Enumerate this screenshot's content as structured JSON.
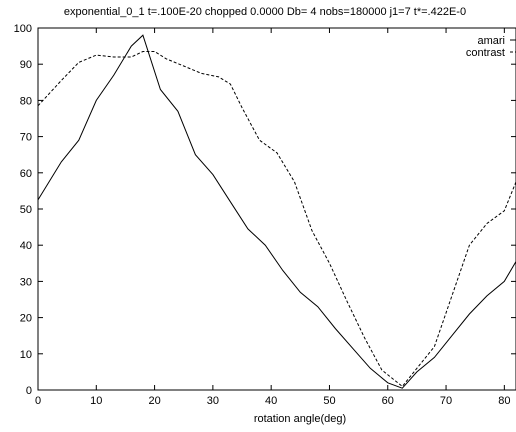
{
  "chart_data": {
    "type": "line",
    "title": "exponential_0_1  t=.100E-20 chopped  0.0000   Db= 4 nobs=180000  j1=7  t*=.422E-0",
    "xlabel": "rotation angle(deg)",
    "ylabel": "",
    "xlim": [
      0,
      82
    ],
    "ylim": [
      0,
      100
    ],
    "xticks": [
      0,
      10,
      20,
      30,
      40,
      50,
      60,
      70,
      80
    ],
    "yticks": [
      0,
      10,
      20,
      30,
      40,
      50,
      60,
      70,
      80,
      90,
      100
    ],
    "grid": false,
    "legend_position": "top-right",
    "series": [
      {
        "name": "amari",
        "style": "solid",
        "color": "#000000",
        "x": [
          0,
          4,
          7,
          10,
          13,
          16,
          18,
          21,
          24,
          27,
          30,
          33,
          36,
          39,
          42,
          45,
          48,
          51,
          54,
          57,
          60,
          62.5,
          65,
          68,
          71,
          74,
          77,
          80,
          82
        ],
        "y": [
          52.5,
          63,
          69,
          80,
          87,
          95,
          98,
          83,
          77,
          65,
          59.5,
          52,
          44.5,
          40,
          33,
          27,
          23,
          17,
          11.5,
          6,
          2,
          0.5,
          5,
          9,
          15,
          21,
          26,
          30,
          35.5
        ]
      },
      {
        "name": "contrast",
        "style": "dashed",
        "color": "#000000",
        "x": [
          0,
          4,
          7,
          10,
          13,
          16,
          18,
          20,
          22,
          25,
          28,
          31,
          33,
          35,
          38,
          41,
          44,
          47,
          50,
          53,
          56,
          59,
          62.5,
          65,
          68,
          71,
          74,
          77,
          80,
          82
        ],
        "y": [
          78.5,
          85.5,
          90.5,
          92.5,
          92,
          92,
          93.5,
          93.5,
          91.5,
          89.5,
          87.5,
          86.5,
          84.5,
          78,
          69,
          65.5,
          57.5,
          44,
          35,
          24.5,
          14.5,
          5.5,
          1,
          6,
          12,
          26,
          40,
          46,
          49.5,
          57.5
        ]
      }
    ]
  }
}
